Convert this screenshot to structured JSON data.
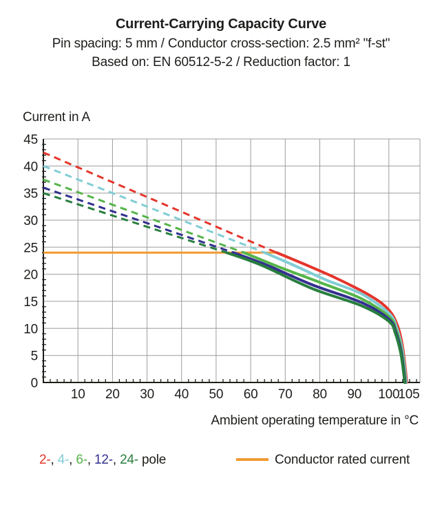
{
  "header": {
    "title": "Current-Carrying Capacity Curve",
    "subtitle1": "Pin spacing: 5 mm / Conductor cross-section: 2.5 mm² \"f-st\"",
    "subtitle2": "Based on: EN 60512-5-2 / Reduction factor: 1"
  },
  "chart_data": {
    "type": "line",
    "title": "Current-Carrying Capacity Curve",
    "xlabel": "Ambient operating temperature in °C",
    "ylabel": "Current in A",
    "xlim": [
      0,
      109
    ],
    "ylim": [
      0,
      45
    ],
    "grid": true,
    "grid_color": "#9c9c9c",
    "axis_color": "#1d1d1b",
    "x_gridlines": [
      10,
      20,
      30,
      40,
      50,
      60,
      70,
      80,
      90,
      100
    ],
    "y_gridlines": [
      5,
      10,
      15,
      20,
      25,
      30,
      35,
      40,
      45
    ],
    "x_minor_step": 2,
    "y_minor_step": 1,
    "x_tick_labels": [
      {
        "v": 10,
        "label": "10"
      },
      {
        "v": 20,
        "label": "20"
      },
      {
        "v": 30,
        "label": "30"
      },
      {
        "v": 40,
        "label": "40"
      },
      {
        "v": 50,
        "label": "50"
      },
      {
        "v": 60,
        "label": "60"
      },
      {
        "v": 70,
        "label": "70"
      },
      {
        "v": 80,
        "label": "80"
      },
      {
        "v": 90,
        "label": "90"
      },
      {
        "v": 100,
        "label": "100"
      },
      {
        "v": 105,
        "label": "105",
        "dx": 4
      }
    ],
    "y_tick_labels": [
      0,
      5,
      10,
      15,
      20,
      25,
      30,
      35,
      40,
      45
    ],
    "rated_current": {
      "label": "Conductor rated current",
      "value": 24,
      "x_start": 0,
      "x_end": 67.5,
      "color": "#f09a32"
    },
    "series": [
      {
        "name": "2-pole",
        "color": "#e5352b",
        "dashed": [
          [
            0,
            42.5
          ],
          [
            67.5,
            24
          ]
        ],
        "solid": [
          [
            67.5,
            24
          ],
          [
            75,
            22
          ],
          [
            85,
            19.2
          ],
          [
            95,
            15.9
          ],
          [
            100,
            13.4
          ],
          [
            102.5,
            10.5
          ],
          [
            104,
            6.5
          ],
          [
            105.2,
            0
          ]
        ]
      },
      {
        "name": "4-pole",
        "color": "#82cdd5",
        "dashed": [
          [
            0,
            40
          ],
          [
            64,
            24
          ]
        ],
        "solid": [
          [
            64,
            24
          ],
          [
            72,
            21.8
          ],
          [
            82,
            18.9
          ],
          [
            92,
            16.4
          ],
          [
            100,
            12.8
          ],
          [
            102.3,
            10
          ],
          [
            103.9,
            6
          ],
          [
            105,
            0
          ]
        ]
      },
      {
        "name": "6-pole",
        "color": "#56b44a",
        "dashed": [
          [
            0,
            37.5
          ],
          [
            58,
            24
          ]
        ],
        "solid": [
          [
            58,
            24
          ],
          [
            68,
            21.4
          ],
          [
            80,
            18.5
          ],
          [
            92,
            15.5
          ],
          [
            100,
            12.2
          ],
          [
            102.1,
            9.7
          ],
          [
            103.7,
            5.8
          ],
          [
            104.8,
            0
          ]
        ]
      },
      {
        "name": "12-pole",
        "color": "#33308f",
        "dashed": [
          [
            0,
            36
          ],
          [
            55,
            24
          ]
        ],
        "solid": [
          [
            55,
            24
          ],
          [
            65,
            21.6
          ],
          [
            78,
            18
          ],
          [
            92,
            14.8
          ],
          [
            100,
            11.7
          ],
          [
            102,
            9.3
          ],
          [
            103.6,
            5.5
          ],
          [
            104.7,
            0
          ]
        ]
      },
      {
        "name": "24-pole",
        "color": "#287e3e",
        "dashed": [
          [
            0,
            35
          ],
          [
            53,
            24
          ]
        ],
        "solid": [
          [
            53,
            24
          ],
          [
            63,
            21.7
          ],
          [
            78,
            17.3
          ],
          [
            92,
            14.2
          ],
          [
            100,
            11.3
          ],
          [
            101.9,
            9
          ],
          [
            103.5,
            5.2
          ],
          [
            104.6,
            0
          ]
        ]
      }
    ],
    "line_style": {
      "dash_width": 3,
      "dash_pattern": "10 7",
      "solid_width": 4
    }
  },
  "legend": {
    "pole_items": [
      {
        "label": "2-",
        "color": "#e5352b"
      },
      {
        "label": "4-",
        "color": "#82cdd5"
      },
      {
        "label": "6-",
        "color": "#56b44a"
      },
      {
        "label": "12-",
        "color": "#33308f"
      },
      {
        "label": "24-",
        "color": "#287e3e"
      }
    ],
    "separator": ", ",
    "suffix": " pole",
    "rated_label": "Conductor rated current"
  }
}
